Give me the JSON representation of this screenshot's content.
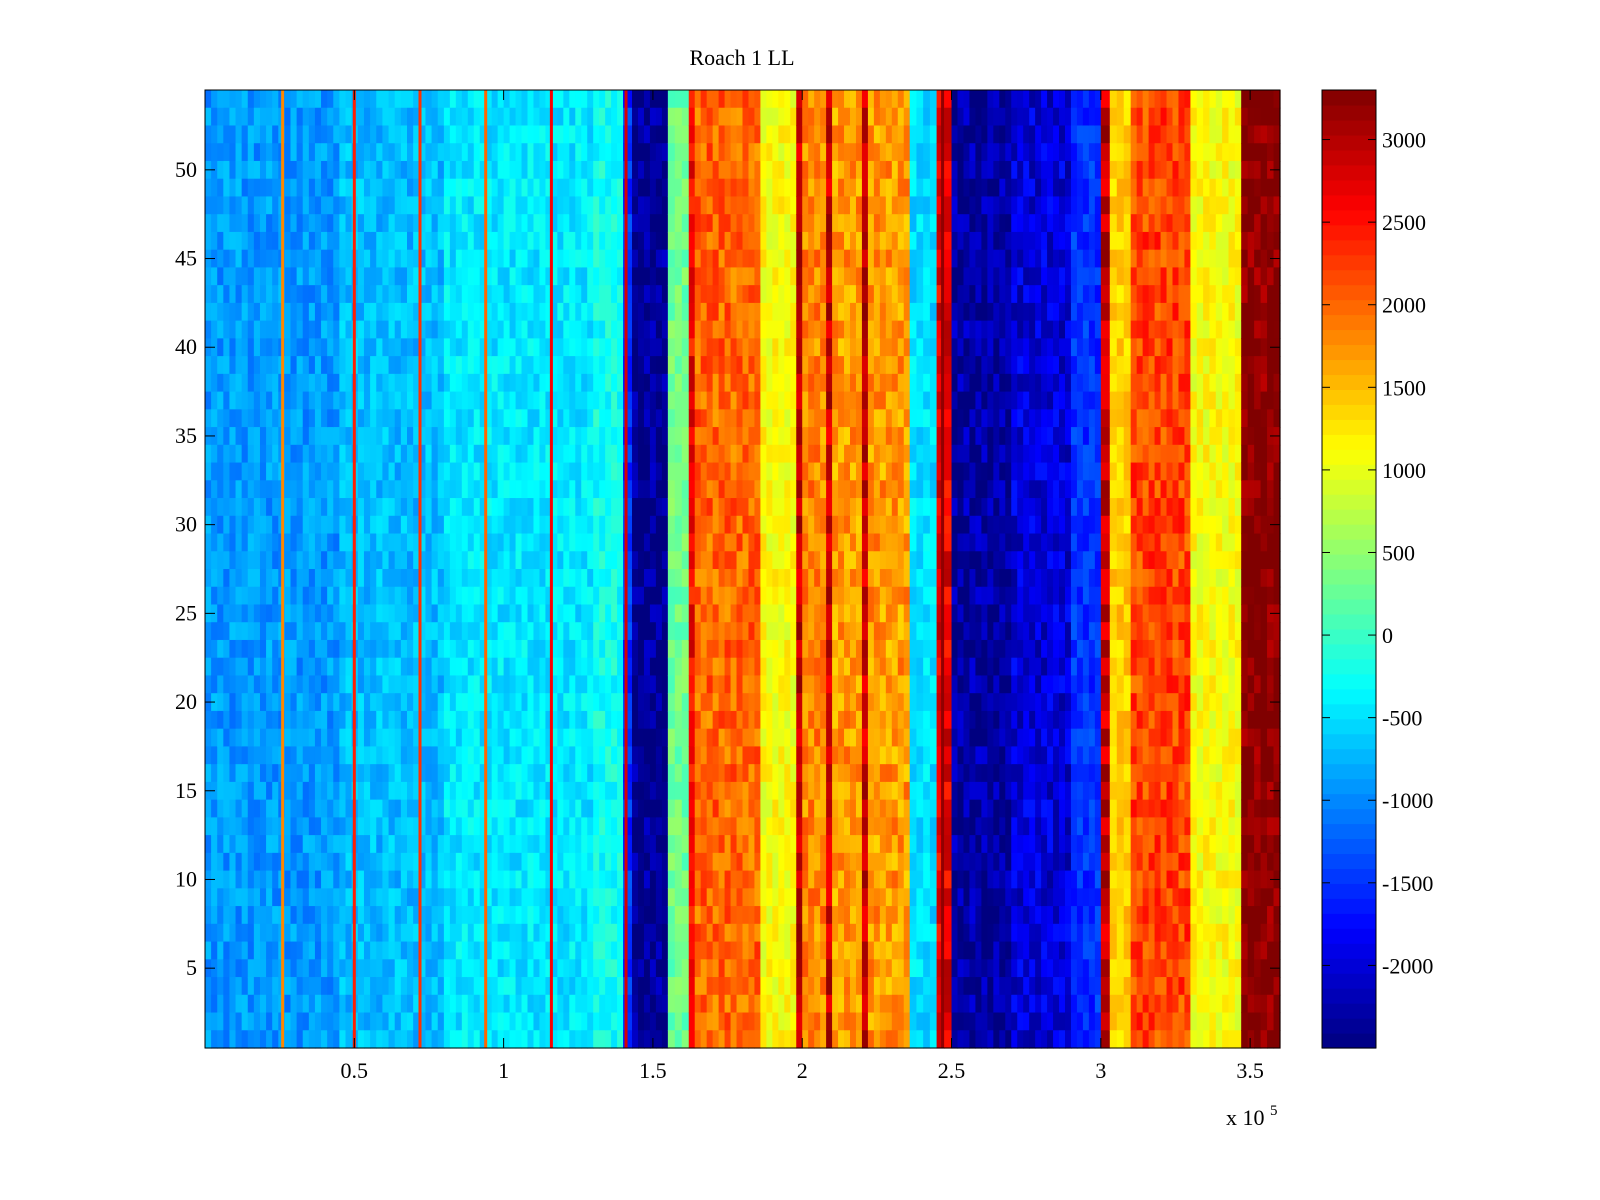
{
  "chart_data": {
    "type": "heatmap",
    "title": "Roach 1 LL",
    "xlabel": "",
    "ylabel": "",
    "x_exponent_label": "x 10",
    "x_exponent": "5",
    "xlim": [
      0,
      3.6
    ],
    "ylim": [
      0.5,
      54.5
    ],
    "xticks": [
      0.5,
      1,
      1.5,
      2,
      2.5,
      3,
      3.5
    ],
    "xtick_labels": [
      "0.5",
      "1",
      "1.5",
      "2",
      "2.5",
      "3",
      "3.5"
    ],
    "yticks": [
      5,
      10,
      15,
      20,
      25,
      30,
      35,
      40,
      45,
      50
    ],
    "ytick_labels": [
      "5",
      "10",
      "15",
      "20",
      "25",
      "30",
      "35",
      "40",
      "45",
      "50"
    ],
    "rows": 54,
    "colormap": "jet",
    "clim": [
      -2500,
      3300
    ],
    "colorbar": {
      "ticks": [
        -2000,
        -1500,
        -1000,
        -500,
        0,
        500,
        1000,
        1500,
        2000,
        2500,
        3000
      ],
      "tick_labels": [
        "-2000",
        "-1500",
        "-1000",
        "-500",
        "0",
        "500",
        "1000",
        "1500",
        "2000",
        "2500",
        "3000"
      ]
    },
    "column_bands": [
      {
        "x0": 0.0,
        "x1": 0.45,
        "value": -900
      },
      {
        "x0": 0.45,
        "x1": 0.8,
        "value": -700
      },
      {
        "x0": 0.8,
        "x1": 1.3,
        "value": -450
      },
      {
        "x0": 1.3,
        "x1": 1.4,
        "value": -250
      },
      {
        "x0": 1.4,
        "x1": 1.43,
        "value": -1500
      },
      {
        "x0": 1.43,
        "x1": 1.55,
        "value": -2400
      },
      {
        "x0": 1.55,
        "x1": 1.62,
        "value": 300
      },
      {
        "x0": 1.62,
        "x1": 1.64,
        "value": 2600
      },
      {
        "x0": 1.64,
        "x1": 1.86,
        "value": 2000
      },
      {
        "x0": 1.86,
        "x1": 1.98,
        "value": 1100
      },
      {
        "x0": 1.98,
        "x1": 2.0,
        "value": 2900
      },
      {
        "x0": 2.0,
        "x1": 2.08,
        "value": 1800
      },
      {
        "x0": 2.08,
        "x1": 2.1,
        "value": 2900
      },
      {
        "x0": 2.1,
        "x1": 2.2,
        "value": 1700
      },
      {
        "x0": 2.2,
        "x1": 2.22,
        "value": 2900
      },
      {
        "x0": 2.22,
        "x1": 2.36,
        "value": 1700
      },
      {
        "x0": 2.36,
        "x1": 2.45,
        "value": -500
      },
      {
        "x0": 2.45,
        "x1": 2.5,
        "value": 2700
      },
      {
        "x0": 2.5,
        "x1": 2.7,
        "value": -2300
      },
      {
        "x0": 2.7,
        "x1": 2.9,
        "value": -2000
      },
      {
        "x0": 2.9,
        "x1": 3.0,
        "value": -1500
      },
      {
        "x0": 3.0,
        "x1": 3.03,
        "value": 2900
      },
      {
        "x0": 3.03,
        "x1": 3.1,
        "value": 1400
      },
      {
        "x0": 3.1,
        "x1": 3.3,
        "value": 2200
      },
      {
        "x0": 3.3,
        "x1": 3.47,
        "value": 1100
      },
      {
        "x0": 3.47,
        "x1": 3.6,
        "value": 3300
      }
    ],
    "spikes": [
      {
        "x": 0.26,
        "value": 1800
      },
      {
        "x": 0.5,
        "value": 2400
      },
      {
        "x": 0.72,
        "value": 2300
      },
      {
        "x": 0.94,
        "value": 2000
      },
      {
        "x": 1.16,
        "value": 2600
      },
      {
        "x": 1.41,
        "value": 2800
      },
      {
        "x": 2.47,
        "value": 3200
      }
    ]
  }
}
